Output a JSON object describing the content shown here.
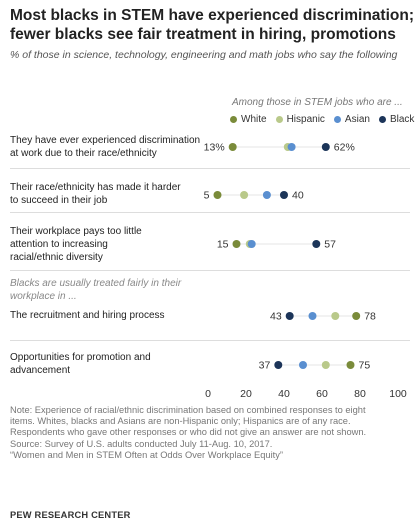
{
  "title_line1": "Most blacks in STEM have experienced discrimination;",
  "title_line2": "fewer blacks see fair treatment in hiring, promotions",
  "subtitle": "% of those in science, technology, engineering and math jobs who say the following",
  "legend_title": "Among those in STEM jobs who are ...",
  "colors": {
    "White": "#7a8b3a",
    "Hispanic": "#b9c98a",
    "Asian": "#5a8fd0",
    "Black": "#1c3559"
  },
  "section_note": "Blacks are usually treated fairly in their workplace in ...",
  "notes": [
    "Note: Experience of racial/ethnic discrimination based on combined responses to eight",
    "items. Whites, blacks and Asians are non-Hispanic only; Hispanics are of any race.",
    "Respondents who gave other responses or who did not give an answer are not shown.",
    "Source: Survey of U.S. adults conducted July 11-Aug. 10, 2017.",
    "“Women and Men in STEM Often at Odds Over Workplace Equity”"
  ],
  "source_org": "PEW RESEARCH CENTER",
  "chart_data": {
    "type": "scatter",
    "title": "Most blacks in STEM have experienced discrimination; fewer blacks see fair treatment in hiring, promotions",
    "series_order": [
      "White",
      "Hispanic",
      "Asian",
      "Black"
    ],
    "xlim": [
      0,
      100
    ],
    "xticks": [
      0,
      20,
      40,
      60,
      80,
      100
    ],
    "grid": false,
    "legend": "top-right",
    "categories": [
      "They have ever experienced discrimination at work due to their race/ethnicity",
      "Their race/ethnicity has made it harder to succeed in their job",
      "Their workplace pays too little attention to increasing racial/ethnic diversity",
      "The recruitment and hiring process",
      "Opportunities for promotion and advancement"
    ],
    "series": [
      {
        "name": "White",
        "values": [
          13,
          5,
          15,
          78,
          75
        ]
      },
      {
        "name": "Hispanic",
        "values": [
          42,
          19,
          22,
          67,
          62
        ]
      },
      {
        "name": "Asian",
        "values": [
          44,
          31,
          23,
          55,
          50
        ]
      },
      {
        "name": "Black",
        "values": [
          62,
          40,
          57,
          43,
          37
        ]
      }
    ],
    "value_labels": [
      {
        "left": "13%",
        "right": "62%"
      },
      {
        "left": "5",
        "right": "40"
      },
      {
        "left": "15",
        "right": "57"
      },
      {
        "left": "43",
        "right": "78"
      },
      {
        "left": "37",
        "right": "75"
      }
    ]
  }
}
